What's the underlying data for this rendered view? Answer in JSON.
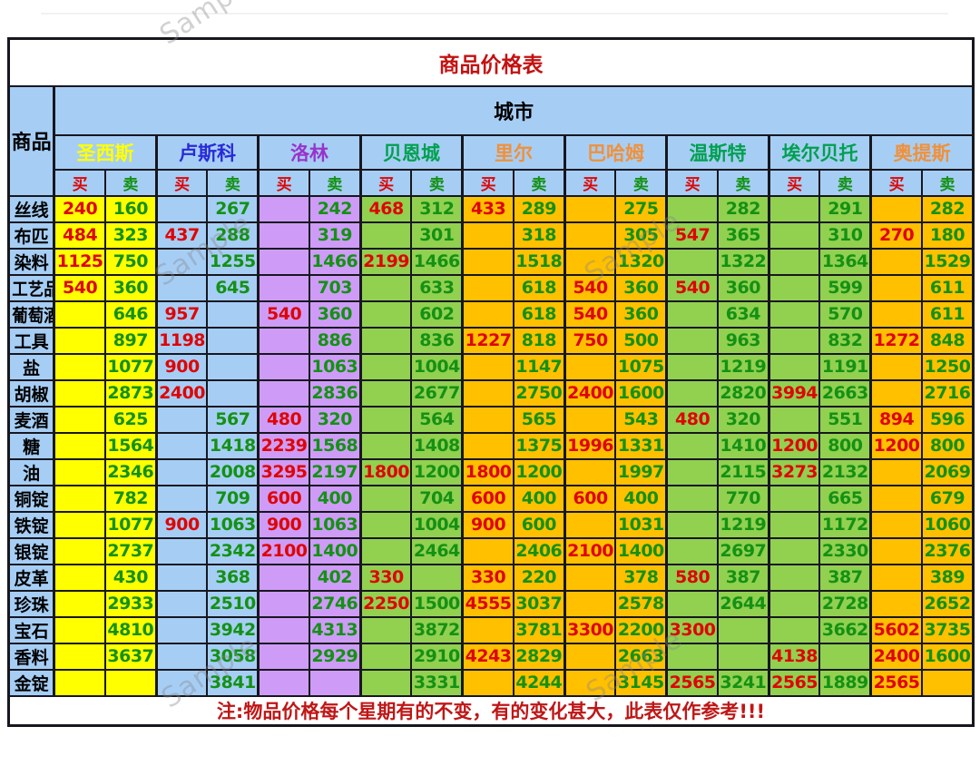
{
  "page": {
    "title": "商品价格表",
    "note": "注:物品价格每个星期有的不变，有的变化甚大，此表仅作参考!!!",
    "watermark": "Sample"
  },
  "header": {
    "product_label": "商品",
    "city_band_label": "城市",
    "buy_label": "买",
    "sell_label": "卖"
  },
  "colors": {
    "title_red": "#C41111",
    "note_red": "#C01616",
    "buy_text": "#DE0505",
    "sell_text": "#149114",
    "buysell_buy": "#DE0505",
    "buysell_sell": "#149114",
    "header_blue_bg": "#A6CEF5",
    "border_black": "#17171f",
    "city_yellow_bg": "#FFFF00",
    "city_blue_bg": "#A6CEF5",
    "city_purple_bg": "#CE9CF7",
    "city_green_bg": "#92D050",
    "city_amber_bg": "#FFC000"
  },
  "cities": [
    {
      "name": "圣西斯",
      "text_color": "#FFFF00",
      "bg": "#FFFF00"
    },
    {
      "name": "卢斯科",
      "text_color": "#2A2AD8",
      "bg": "#A6CEF5"
    },
    {
      "name": "洛林",
      "text_color": "#9933CC",
      "bg": "#CE9CF7"
    },
    {
      "name": "贝恩城",
      "text_color": "#00A050",
      "bg": "#92D050"
    },
    {
      "name": "里尔",
      "text_color": "#F0913A",
      "bg": "#FFC000"
    },
    {
      "name": "巴哈姆",
      "text_color": "#F0913A",
      "bg": "#FFC000"
    },
    {
      "name": "温斯特",
      "text_color": "#00A050",
      "bg": "#92D050"
    },
    {
      "name": "埃尔贝托",
      "text_color": "#00A050",
      "bg": "#92D050"
    },
    {
      "name": "奥提斯",
      "text_color": "#F0913A",
      "bg": "#FFC000"
    }
  ],
  "rows": [
    {
      "label": "丝线",
      "prices": [
        [
          "240",
          "160"
        ],
        [
          "",
          "267"
        ],
        [
          "",
          "242"
        ],
        [
          "468",
          "312"
        ],
        [
          "433",
          "289"
        ],
        [
          "",
          "275"
        ],
        [
          "",
          "282"
        ],
        [
          "",
          "291"
        ],
        [
          "",
          "282"
        ]
      ]
    },
    {
      "label": "布匹",
      "prices": [
        [
          "484",
          "323"
        ],
        [
          "437",
          "288"
        ],
        [
          "",
          "319"
        ],
        [
          "",
          "301"
        ],
        [
          "",
          "318"
        ],
        [
          "",
          "305"
        ],
        [
          "547",
          "365"
        ],
        [
          "",
          "310"
        ],
        [
          "270",
          "180"
        ]
      ]
    },
    {
      "label": "染料",
      "prices": [
        [
          "1125",
          "750"
        ],
        [
          "",
          "1255"
        ],
        [
          "",
          "1466"
        ],
        [
          "2199",
          "1466"
        ],
        [
          "",
          "1518"
        ],
        [
          "",
          "1320"
        ],
        [
          "",
          "1322"
        ],
        [
          "",
          "1364"
        ],
        [
          "",
          "1529"
        ]
      ]
    },
    {
      "label": "工艺品",
      "prices": [
        [
          "540",
          "360"
        ],
        [
          "",
          "645"
        ],
        [
          "",
          "703"
        ],
        [
          "",
          "633"
        ],
        [
          "",
          "618"
        ],
        [
          "540",
          "360"
        ],
        [
          "540",
          "360"
        ],
        [
          "",
          "599"
        ],
        [
          "",
          "611"
        ]
      ]
    },
    {
      "label": "葡萄酒",
      "prices": [
        [
          "",
          "646"
        ],
        [
          "957",
          ""
        ],
        [
          "540",
          "360"
        ],
        [
          "",
          "602"
        ],
        [
          "",
          "618"
        ],
        [
          "540",
          "360"
        ],
        [
          "",
          "634"
        ],
        [
          "",
          "570"
        ],
        [
          "",
          "611"
        ]
      ]
    },
    {
      "label": "工具",
      "prices": [
        [
          "",
          "897"
        ],
        [
          "1198",
          ""
        ],
        [
          "",
          "886"
        ],
        [
          "",
          "836"
        ],
        [
          "1227",
          "818"
        ],
        [
          "750",
          "500"
        ],
        [
          "",
          "963"
        ],
        [
          "",
          "832"
        ],
        [
          "1272",
          "848"
        ]
      ]
    },
    {
      "label": "盐",
      "prices": [
        [
          "",
          "1077"
        ],
        [
          "900",
          ""
        ],
        [
          "",
          "1063"
        ],
        [
          "",
          "1004"
        ],
        [
          "",
          "1147"
        ],
        [
          "",
          "1075"
        ],
        [
          "",
          "1219"
        ],
        [
          "",
          "1191"
        ],
        [
          "",
          "1250"
        ]
      ]
    },
    {
      "label": "胡椒",
      "prices": [
        [
          "",
          "2873"
        ],
        [
          "2400",
          ""
        ],
        [
          "",
          "2836"
        ],
        [
          "",
          "2677"
        ],
        [
          "",
          "2750"
        ],
        [
          "2400",
          "1600"
        ],
        [
          "",
          "2820"
        ],
        [
          "3994",
          "2663"
        ],
        [
          "",
          "2716"
        ]
      ]
    },
    {
      "label": "麦酒",
      "prices": [
        [
          "",
          "625"
        ],
        [
          "",
          "567"
        ],
        [
          "480",
          "320"
        ],
        [
          "",
          "564"
        ],
        [
          "",
          "565"
        ],
        [
          "",
          "543"
        ],
        [
          "480",
          "320"
        ],
        [
          "",
          "551"
        ],
        [
          "894",
          "596"
        ]
      ]
    },
    {
      "label": "糖",
      "prices": [
        [
          "",
          "1564"
        ],
        [
          "",
          "1418"
        ],
        [
          "2239",
          "1568"
        ],
        [
          "",
          "1408"
        ],
        [
          "",
          "1375"
        ],
        [
          "1996",
          "1331"
        ],
        [
          "",
          "1410"
        ],
        [
          "1200",
          "800"
        ],
        [
          "1200",
          "800"
        ]
      ]
    },
    {
      "label": "油",
      "prices": [
        [
          "",
          "2346"
        ],
        [
          "",
          "2008"
        ],
        [
          "3295",
          "2197"
        ],
        [
          "1800",
          "1200"
        ],
        [
          "1800",
          "1200"
        ],
        [
          "",
          "1997"
        ],
        [
          "",
          "2115"
        ],
        [
          "3273",
          "2132"
        ],
        [
          "",
          "2069"
        ]
      ]
    },
    {
      "label": "铜锭",
      "prices": [
        [
          "",
          "782"
        ],
        [
          "",
          "709"
        ],
        [
          "600",
          "400"
        ],
        [
          "",
          "704"
        ],
        [
          "600",
          "400"
        ],
        [
          "600",
          "400"
        ],
        [
          "",
          "770"
        ],
        [
          "",
          "665"
        ],
        [
          "",
          "679"
        ]
      ]
    },
    {
      "label": "铁锭",
      "prices": [
        [
          "",
          "1077"
        ],
        [
          "900",
          "1063"
        ],
        [
          "900",
          "1063"
        ],
        [
          "",
          "1004"
        ],
        [
          "900",
          "600"
        ],
        [
          "",
          "1031"
        ],
        [
          "",
          "1219"
        ],
        [
          "",
          "1172"
        ],
        [
          "",
          "1060"
        ]
      ]
    },
    {
      "label": "银锭",
      "prices": [
        [
          "",
          "2737"
        ],
        [
          "",
          "2342"
        ],
        [
          "2100",
          "1400"
        ],
        [
          "",
          "2464"
        ],
        [
          "",
          "2406"
        ],
        [
          "2100",
          "1400"
        ],
        [
          "",
          "2697"
        ],
        [
          "",
          "2330"
        ],
        [
          "",
          "2376"
        ]
      ]
    },
    {
      "label": "皮革",
      "prices": [
        [
          "",
          "430"
        ],
        [
          "",
          "368"
        ],
        [
          "",
          "402"
        ],
        [
          "330",
          ""
        ],
        [
          "330",
          "220"
        ],
        [
          "",
          "378"
        ],
        [
          "580",
          "387"
        ],
        [
          "",
          "387"
        ],
        [
          "",
          "389"
        ]
      ]
    },
    {
      "label": "珍珠",
      "prices": [
        [
          "",
          "2933"
        ],
        [
          "",
          "2510"
        ],
        [
          "",
          "2746"
        ],
        [
          "2250",
          "1500"
        ],
        [
          "4555",
          "3037"
        ],
        [
          "",
          "2578"
        ],
        [
          "",
          "2644"
        ],
        [
          "",
          "2728"
        ],
        [
          "",
          "2652"
        ]
      ]
    },
    {
      "label": "宝石",
      "prices": [
        [
          "",
          "4810"
        ],
        [
          "",
          "3942"
        ],
        [
          "",
          "4313"
        ],
        [
          "",
          "3872"
        ],
        [
          "",
          "3781"
        ],
        [
          "3300",
          "2200"
        ],
        [
          "3300",
          ""
        ],
        [
          "",
          "3662"
        ],
        [
          "5602",
          "3735"
        ]
      ]
    },
    {
      "label": "香料",
      "prices": [
        [
          "",
          "3637"
        ],
        [
          "",
          "3058"
        ],
        [
          "",
          "2929"
        ],
        [
          "",
          "2910"
        ],
        [
          "4243",
          "2829"
        ],
        [
          "",
          "2663"
        ],
        [
          "",
          ""
        ],
        [
          "4138",
          ""
        ],
        [
          "2400",
          "1600"
        ]
      ]
    },
    {
      "label": "金锭",
      "prices": [
        [
          "",
          ""
        ],
        [
          "",
          "3841"
        ],
        [
          "",
          ""
        ],
        [
          "",
          "3331"
        ],
        [
          "",
          "4244"
        ],
        [
          "",
          "3145"
        ],
        [
          "2565",
          "3241"
        ],
        [
          "2565",
          "1889"
        ],
        [
          "2565",
          ""
        ]
      ]
    }
  ]
}
